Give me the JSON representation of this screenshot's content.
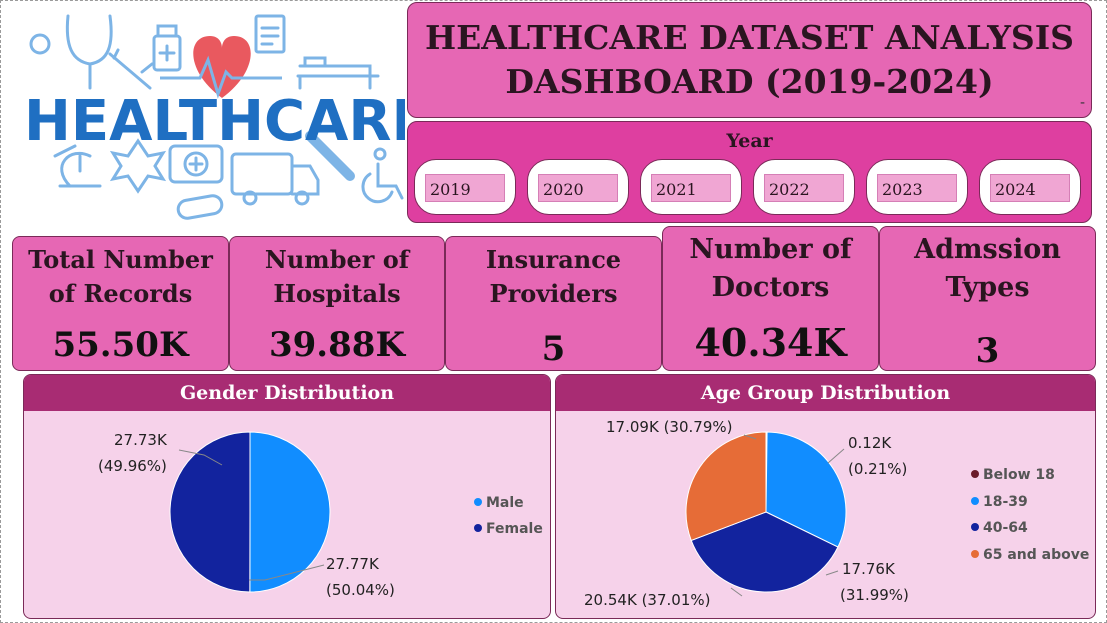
{
  "logo": {
    "word": "HEALTHCARE"
  },
  "title": {
    "line1": "HEALTHCARE DATASET ANALYSIS",
    "line2": "DASHBOARD (2019-2024)",
    "dash": "-"
  },
  "year_slicer": {
    "label": "Year",
    "years": [
      "2019",
      "2020",
      "2021",
      "2022",
      "2023",
      "2024"
    ]
  },
  "kpis": [
    {
      "label1": "Total Number",
      "label2": "of Records",
      "value": "55.50K"
    },
    {
      "label1": "Number of",
      "label2": "Hospitals",
      "value": "39.88K"
    },
    {
      "label1": "Insurance",
      "label2": "Providers",
      "value": "5"
    },
    {
      "label1": "Number of",
      "label2": "Doctors",
      "value": "40.34K"
    },
    {
      "label1": "Admssion",
      "label2": "Types",
      "value": "3"
    }
  ],
  "colors": {
    "male": "#118dff",
    "female": "#12239e",
    "below18": "#6b1a2a",
    "age18_39": "#118dff",
    "age40_64": "#12239e",
    "age65": "#e66c37"
  },
  "chart_data": [
    {
      "type": "pie",
      "title": "Gender Distribution",
      "slices": [
        {
          "name": "Male",
          "value": 27.77,
          "label_value": "27.77K",
          "label_pct": "(50.04%)",
          "color": "#118dff"
        },
        {
          "name": "Female",
          "value": 27.73,
          "label_value": "27.73K",
          "label_pct": "(49.96%)",
          "color": "#12239e"
        }
      ],
      "legend": [
        "Male",
        "Female"
      ],
      "legend_position": "right"
    },
    {
      "type": "pie",
      "title": "Age Group Distribution",
      "slices": [
        {
          "name": "Below 18",
          "value": 0.12,
          "label_value": "0.12K",
          "label_pct": "(0.21%)",
          "color": "#6b1a2a"
        },
        {
          "name": "18-39",
          "value": 17.76,
          "label_value": "17.76K",
          "label_pct": "(31.99%)",
          "color": "#118dff"
        },
        {
          "name": "40-64",
          "value": 20.54,
          "label_value": "20.54K",
          "label_pct": "(37.01%)",
          "color": "#12239e"
        },
        {
          "name": "65 and above",
          "value": 17.09,
          "label_value": "17.09K",
          "label_pct": "(30.79%)",
          "color": "#e66c37"
        }
      ],
      "legend": [
        "Below 18",
        "18-39",
        "40-64",
        "65 and above"
      ],
      "legend_position": "right"
    }
  ]
}
